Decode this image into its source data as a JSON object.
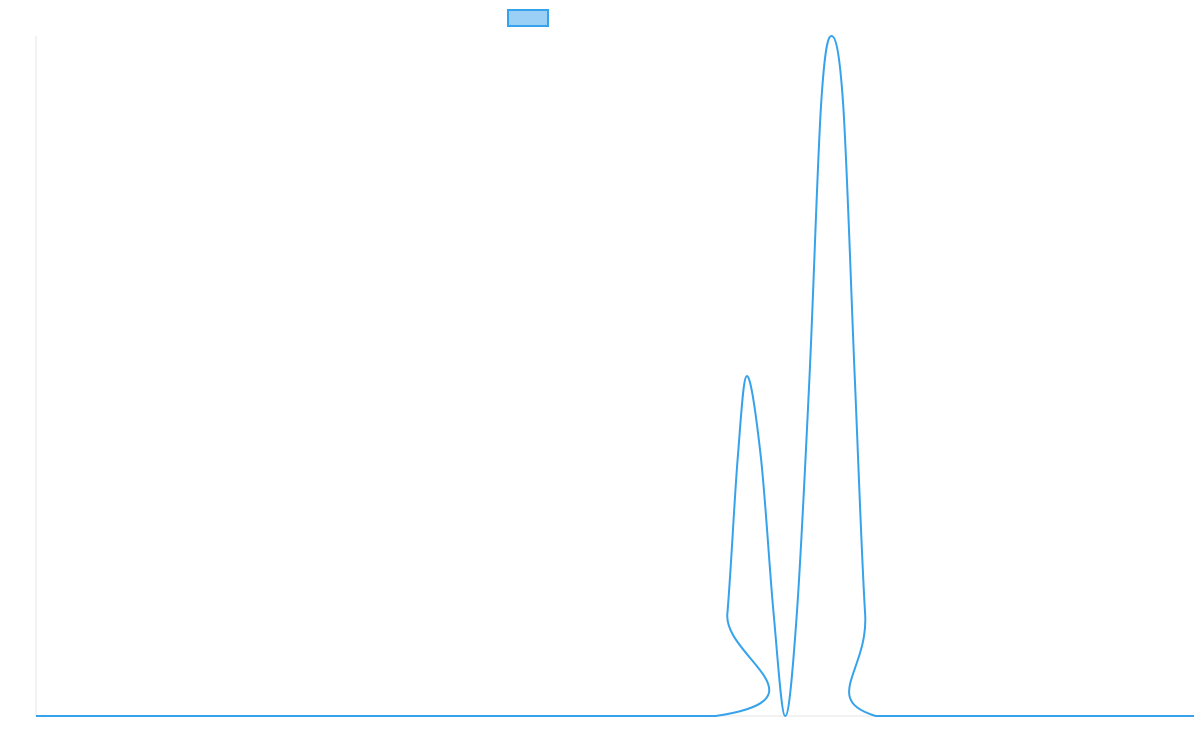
{
  "chart_data": {
    "type": "line",
    "title": "",
    "xlabel": "",
    "ylabel": "",
    "xlim": [
      0,
      1
    ],
    "ylim": [
      0,
      1
    ],
    "grid": false,
    "legend": {
      "placement": "top-center",
      "entries": [
        ""
      ]
    },
    "series": [
      {
        "name": "",
        "color": "#36a2eb",
        "fill": "#9ad0f5",
        "x": [
          0,
          0.587,
          0.597,
          0.606,
          0.614,
          0.626,
          0.637,
          0.647,
          0.657,
          0.668,
          0.678,
          0.687,
          0.697,
          0.707,
          0.716,
          0.725,
          1.0
        ],
        "y": [
          0,
          0,
          0.15,
          0.38,
          0.5,
          0.38,
          0.15,
          0,
          0.15,
          0.5,
          0.9,
          1.0,
          0.9,
          0.5,
          0.15,
          0,
          0
        ]
      }
    ]
  }
}
